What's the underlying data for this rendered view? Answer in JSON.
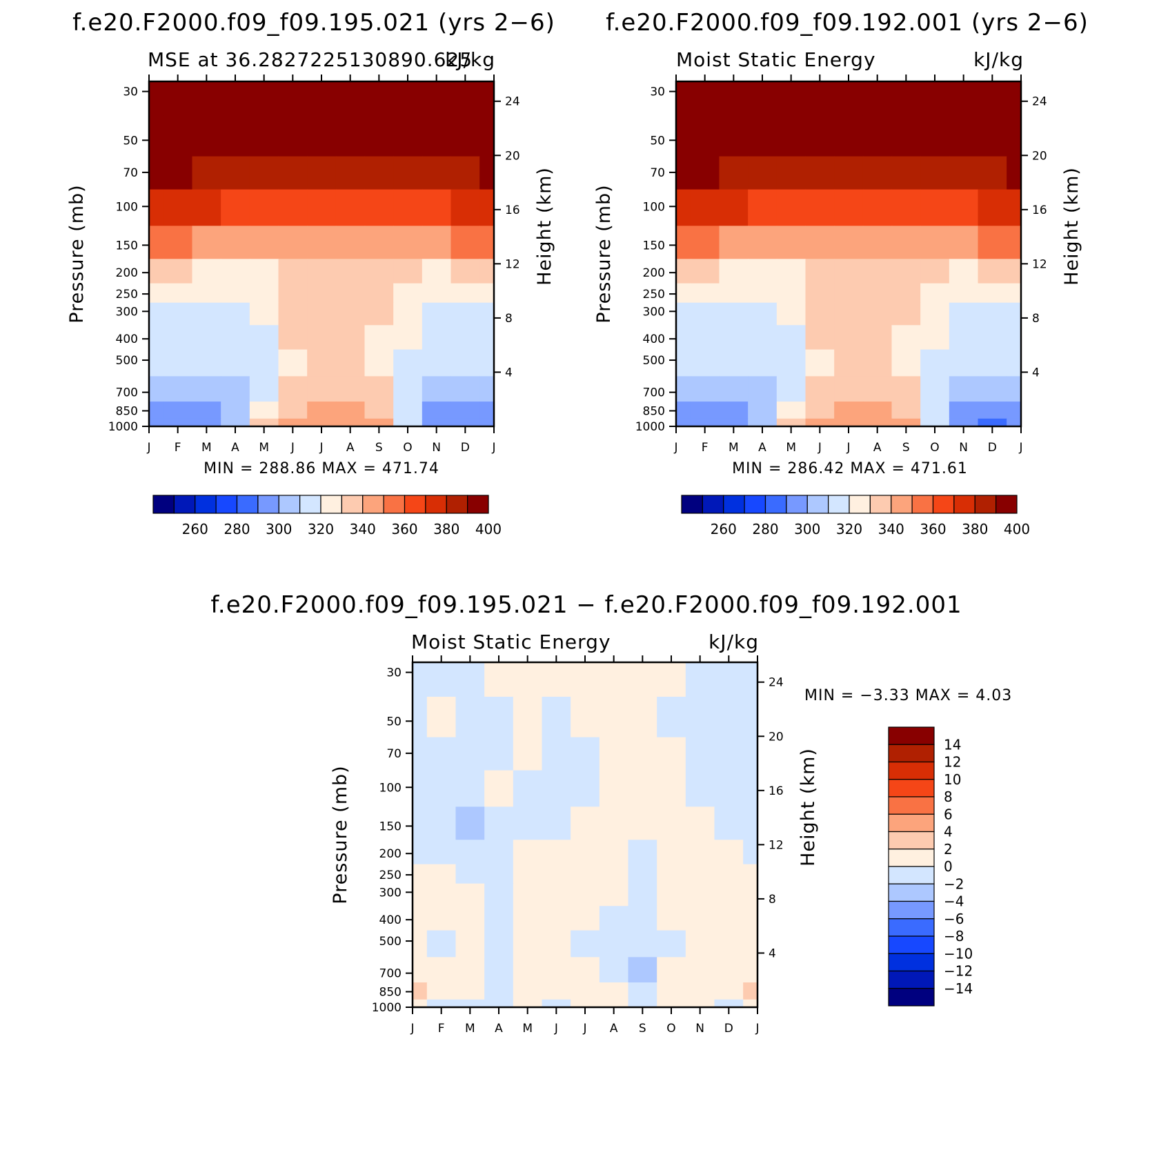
{
  "colorbar_colors": [
    "#00007f",
    "#0018b8",
    "#0030df",
    "#1748ff",
    "#3a6bff",
    "#7799ff",
    "#adc8ff",
    "#d3e6ff",
    "#fff0e0",
    "#fdcbb0",
    "#fca47c",
    "#f97244",
    "#f54617",
    "#d82e05",
    "#b02001",
    "#880000"
  ],
  "panels": [
    {
      "id": "panel-left",
      "title": "f.e20.F2000.f09_f09.195.021 (yrs 2−6)",
      "left_string": "MSE at 36.2827225130890.625",
      "right_string": "kJ/kg",
      "minmax": "MIN =  288.86  MAX =  471.74",
      "colorbar_labels": [
        "260",
        "280",
        "300",
        "320",
        "340",
        "360",
        "380",
        "400"
      ]
    },
    {
      "id": "panel-right",
      "title": "f.e20.F2000.f09_f09.192.001 (yrs 2−6)",
      "left_string": "Moist Static Energy",
      "right_string": "kJ/kg",
      "minmax": "MIN =  286.42  MAX =  471.61",
      "colorbar_labels": [
        "260",
        "280",
        "300",
        "320",
        "340",
        "360",
        "380",
        "400"
      ]
    },
    {
      "id": "panel-diff",
      "title": "f.e20.F2000.f09_f09.195.021 − f.e20.F2000.f09_f09.192.001",
      "left_string": "Moist Static Energy",
      "right_string": "kJ/kg",
      "minmax": "MIN =   −3.33  MAX =     4.03",
      "colorbar_labels": [
        "14",
        "12",
        "10",
        "8",
        "6",
        "4",
        "2",
        "0",
        "−2",
        "−4",
        "−6",
        "−8",
        "−10",
        "−12",
        "−14"
      ]
    }
  ],
  "chart_data": [
    {
      "type": "heatmap",
      "title": "f.e20.F2000.f09_f09.195.021 (yrs 2−6)",
      "ylabel": "Pressure (mb)",
      "y2label": "Height (km)",
      "x_ticks": [
        "J",
        "F",
        "M",
        "A",
        "M",
        "J",
        "J",
        "A",
        "S",
        "O",
        "N",
        "D",
        "J"
      ],
      "y_ticks": [
        "30",
        "50",
        "70",
        "100",
        "150",
        "200",
        "250",
        "300",
        "400",
        "500",
        "700",
        "850",
        "1000"
      ],
      "y2_ticks": [
        "24",
        "20",
        "16",
        "12",
        "8",
        "4"
      ],
      "pressure_levels": [
        30,
        50,
        70,
        100,
        150,
        200,
        250,
        300,
        400,
        500,
        700,
        850,
        1000
      ],
      "months": [
        "J",
        "F",
        "M",
        "A",
        "M",
        "J",
        "J",
        "A",
        "S",
        "O",
        "N",
        "D",
        "J"
      ],
      "values": [
        [
          472,
          472,
          472,
          472,
          472,
          472,
          472,
          472,
          472,
          472,
          472,
          472,
          472
        ],
        [
          405,
          405,
          405,
          405,
          405,
          405,
          402,
          402,
          402,
          405,
          405,
          405,
          405
        ],
        [
          390,
          390,
          388,
          385,
          383,
          382,
          381,
          381,
          382,
          384,
          387,
          389,
          390
        ],
        [
          372,
          372,
          370,
          368,
          365,
          362,
          360,
          360,
          362,
          365,
          368,
          371,
          372
        ],
        [
          352,
          351,
          349,
          347,
          344,
          341,
          340,
          340,
          341,
          344,
          347,
          350,
          352
        ],
        [
          333,
          331,
          329,
          327,
          325,
          337,
          338,
          338,
          337,
          332,
          327,
          330,
          333
        ],
        [
          327,
          324,
          322,
          321,
          323,
          335,
          337,
          337,
          335,
          326,
          322,
          324,
          327
        ],
        [
          318,
          318,
          316,
          315,
          321,
          333,
          336,
          336,
          332,
          324,
          318,
          318,
          318
        ],
        [
          315,
          315,
          314,
          313,
          318,
          331,
          335,
          335,
          329,
          321,
          313,
          314,
          315
        ],
        [
          312,
          312,
          311,
          310,
          315,
          327,
          332,
          332,
          326,
          317,
          310,
          311,
          312
        ],
        [
          305,
          306,
          305,
          306,
          318,
          332,
          337,
          337,
          330,
          314,
          302,
          303,
          305
        ],
        [
          296,
          297,
          296,
          302,
          324,
          338,
          342,
          342,
          336,
          315,
          296,
          295,
          296
        ],
        [
          292,
          293,
          292,
          300,
          330,
          342,
          345,
          345,
          340,
          318,
          292,
          290,
          292
        ]
      ],
      "levels": [
        250,
        260,
        270,
        280,
        290,
        300,
        310,
        320,
        330,
        340,
        350,
        360,
        370,
        380,
        390,
        400
      ],
      "value_units": "kJ/kg",
      "min": 288.86,
      "max": 471.74
    },
    {
      "type": "heatmap",
      "title": "f.e20.F2000.f09_f09.192.001 (yrs 2−6)",
      "ylabel": "Pressure (mb)",
      "y2label": "Height (km)",
      "x_ticks": [
        "J",
        "F",
        "M",
        "A",
        "M",
        "J",
        "J",
        "A",
        "S",
        "O",
        "N",
        "D",
        "J"
      ],
      "y_ticks": [
        "30",
        "50",
        "70",
        "100",
        "150",
        "200",
        "250",
        "300",
        "400",
        "500",
        "700",
        "850",
        "1000"
      ],
      "y2_ticks": [
        "24",
        "20",
        "16",
        "12",
        "8",
        "4"
      ],
      "pressure_levels": [
        30,
        50,
        70,
        100,
        150,
        200,
        250,
        300,
        400,
        500,
        700,
        850,
        1000
      ],
      "months": [
        "J",
        "F",
        "M",
        "A",
        "M",
        "J",
        "J",
        "A",
        "S",
        "O",
        "N",
        "D",
        "J"
      ],
      "values": [
        [
          472,
          472,
          472,
          472,
          472,
          472,
          472,
          472,
          472,
          472,
          472,
          472,
          472
        ],
        [
          405,
          405,
          405,
          405,
          405,
          405,
          402,
          402,
          402,
          405,
          405,
          405,
          405
        ],
        [
          390,
          390,
          388,
          385,
          383,
          382,
          381,
          381,
          382,
          384,
          387,
          389,
          390
        ],
        [
          372,
          372,
          370,
          368,
          365,
          362,
          360,
          360,
          362,
          365,
          368,
          371,
          372
        ],
        [
          352,
          351,
          349,
          347,
          344,
          341,
          340,
          340,
          341,
          344,
          347,
          350,
          352
        ],
        [
          333,
          331,
          329,
          327,
          325,
          337,
          338,
          338,
          337,
          332,
          327,
          330,
          333
        ],
        [
          327,
          324,
          322,
          321,
          323,
          335,
          337,
          337,
          335,
          326,
          322,
          324,
          327
        ],
        [
          318,
          318,
          316,
          315,
          321,
          333,
          336,
          336,
          332,
          324,
          318,
          318,
          318
        ],
        [
          315,
          315,
          314,
          313,
          318,
          331,
          335,
          335,
          329,
          321,
          313,
          314,
          315
        ],
        [
          312,
          312,
          311,
          310,
          315,
          326,
          331,
          330,
          325,
          316,
          310,
          311,
          312
        ],
        [
          304,
          305,
          305,
          306,
          318,
          332,
          337,
          337,
          330,
          314,
          302,
          303,
          304
        ],
        [
          295,
          296,
          296,
          302,
          324,
          338,
          342,
          342,
          336,
          315,
          296,
          295,
          295
        ],
        [
          290,
          292,
          291,
          300,
          330,
          342,
          345,
          345,
          340,
          318,
          291,
          289,
          290
        ]
      ],
      "levels": [
        250,
        260,
        270,
        280,
        290,
        300,
        310,
        320,
        330,
        340,
        350,
        360,
        370,
        380,
        390,
        400
      ],
      "value_units": "kJ/kg",
      "min": 286.42,
      "max": 471.61
    },
    {
      "type": "heatmap",
      "title": "f.e20.F2000.f09_f09.195.021 − f.e20.F2000.f09_f09.192.001",
      "ylabel": "Pressure (mb)",
      "y2label": "Height (km)",
      "x_ticks": [
        "J",
        "F",
        "M",
        "A",
        "M",
        "J",
        "J",
        "A",
        "S",
        "O",
        "N",
        "D",
        "J"
      ],
      "y_ticks": [
        "30",
        "50",
        "70",
        "100",
        "150",
        "200",
        "250",
        "300",
        "400",
        "500",
        "700",
        "850",
        "1000"
      ],
      "y2_ticks": [
        "24",
        "20",
        "16",
        "12",
        "8",
        "4"
      ],
      "pressure_levels": [
        30,
        50,
        70,
        100,
        150,
        200,
        250,
        300,
        400,
        500,
        700,
        850,
        1000
      ],
      "months": [
        "J",
        "F",
        "M",
        "A",
        "M",
        "J",
        "J",
        "A",
        "S",
        "O",
        "N",
        "D",
        "J"
      ],
      "values": [
        [
          -0.5,
          -0.5,
          -0.5,
          0.5,
          0.5,
          0.5,
          0.5,
          0.5,
          0.5,
          0.5,
          -0.5,
          -0.5,
          -0.5
        ],
        [
          -0.5,
          0.5,
          -0.5,
          -0.5,
          0.5,
          -0.5,
          0.5,
          0.5,
          0.5,
          -0.5,
          -0.5,
          -0.5,
          -0.5
        ],
        [
          -0.5,
          -0.5,
          -0.5,
          -0.5,
          0.5,
          -0.5,
          -0.5,
          0.5,
          0.5,
          0.5,
          -0.5,
          -0.5,
          -0.5
        ],
        [
          -0.5,
          -0.5,
          -0.5,
          0.5,
          -0.5,
          -0.5,
          -0.5,
          0.5,
          0.5,
          0.5,
          -0.5,
          -0.5,
          -0.5
        ],
        [
          -0.5,
          -0.5,
          -2.5,
          -0.5,
          -0.5,
          -0.5,
          0.5,
          0.5,
          0.5,
          0.5,
          0.5,
          -0.5,
          -0.5
        ],
        [
          -0.5,
          -0.5,
          -0.5,
          -0.5,
          0.5,
          0.5,
          0.5,
          0.5,
          -0.5,
          0.5,
          0.5,
          0.5,
          -0.5
        ],
        [
          0.5,
          0.5,
          -0.5,
          -0.5,
          0.5,
          0.5,
          0.5,
          0.5,
          -0.5,
          0.5,
          0.5,
          0.5,
          0.5
        ],
        [
          0.5,
          0.5,
          0.5,
          -0.5,
          0.5,
          0.5,
          0.5,
          0.5,
          -0.5,
          0.5,
          0.5,
          0.5,
          0.5
        ],
        [
          0.5,
          0.5,
          0.5,
          -0.5,
          0.5,
          0.5,
          0.5,
          -0.5,
          -0.5,
          0.5,
          0.5,
          0.5,
          0.5
        ],
        [
          0.5,
          -0.5,
          0.5,
          -0.5,
          0.5,
          0.5,
          -0.5,
          -0.5,
          -0.5,
          -0.5,
          0.5,
          0.5,
          0.5
        ],
        [
          0.5,
          0.5,
          0.5,
          -0.5,
          0.5,
          0.5,
          0.5,
          -0.5,
          -2.5,
          0.5,
          0.5,
          0.5,
          0.5
        ],
        [
          2.5,
          0.5,
          0.5,
          -0.5,
          0.5,
          0.5,
          0.5,
          0.5,
          -0.5,
          0.5,
          0.5,
          0.5,
          2.5
        ],
        [
          0.5,
          -0.5,
          -0.5,
          -0.5,
          0.5,
          -0.5,
          0.5,
          0.5,
          -0.5,
          0.5,
          0.5,
          -0.5,
          0.5
        ]
      ],
      "levels": [
        -14,
        -12,
        -10,
        -8,
        -6,
        -4,
        -2,
        0,
        2,
        4,
        6,
        8,
        10,
        12,
        14
      ],
      "value_units": "kJ/kg",
      "min": -3.33,
      "max": 4.03
    }
  ]
}
